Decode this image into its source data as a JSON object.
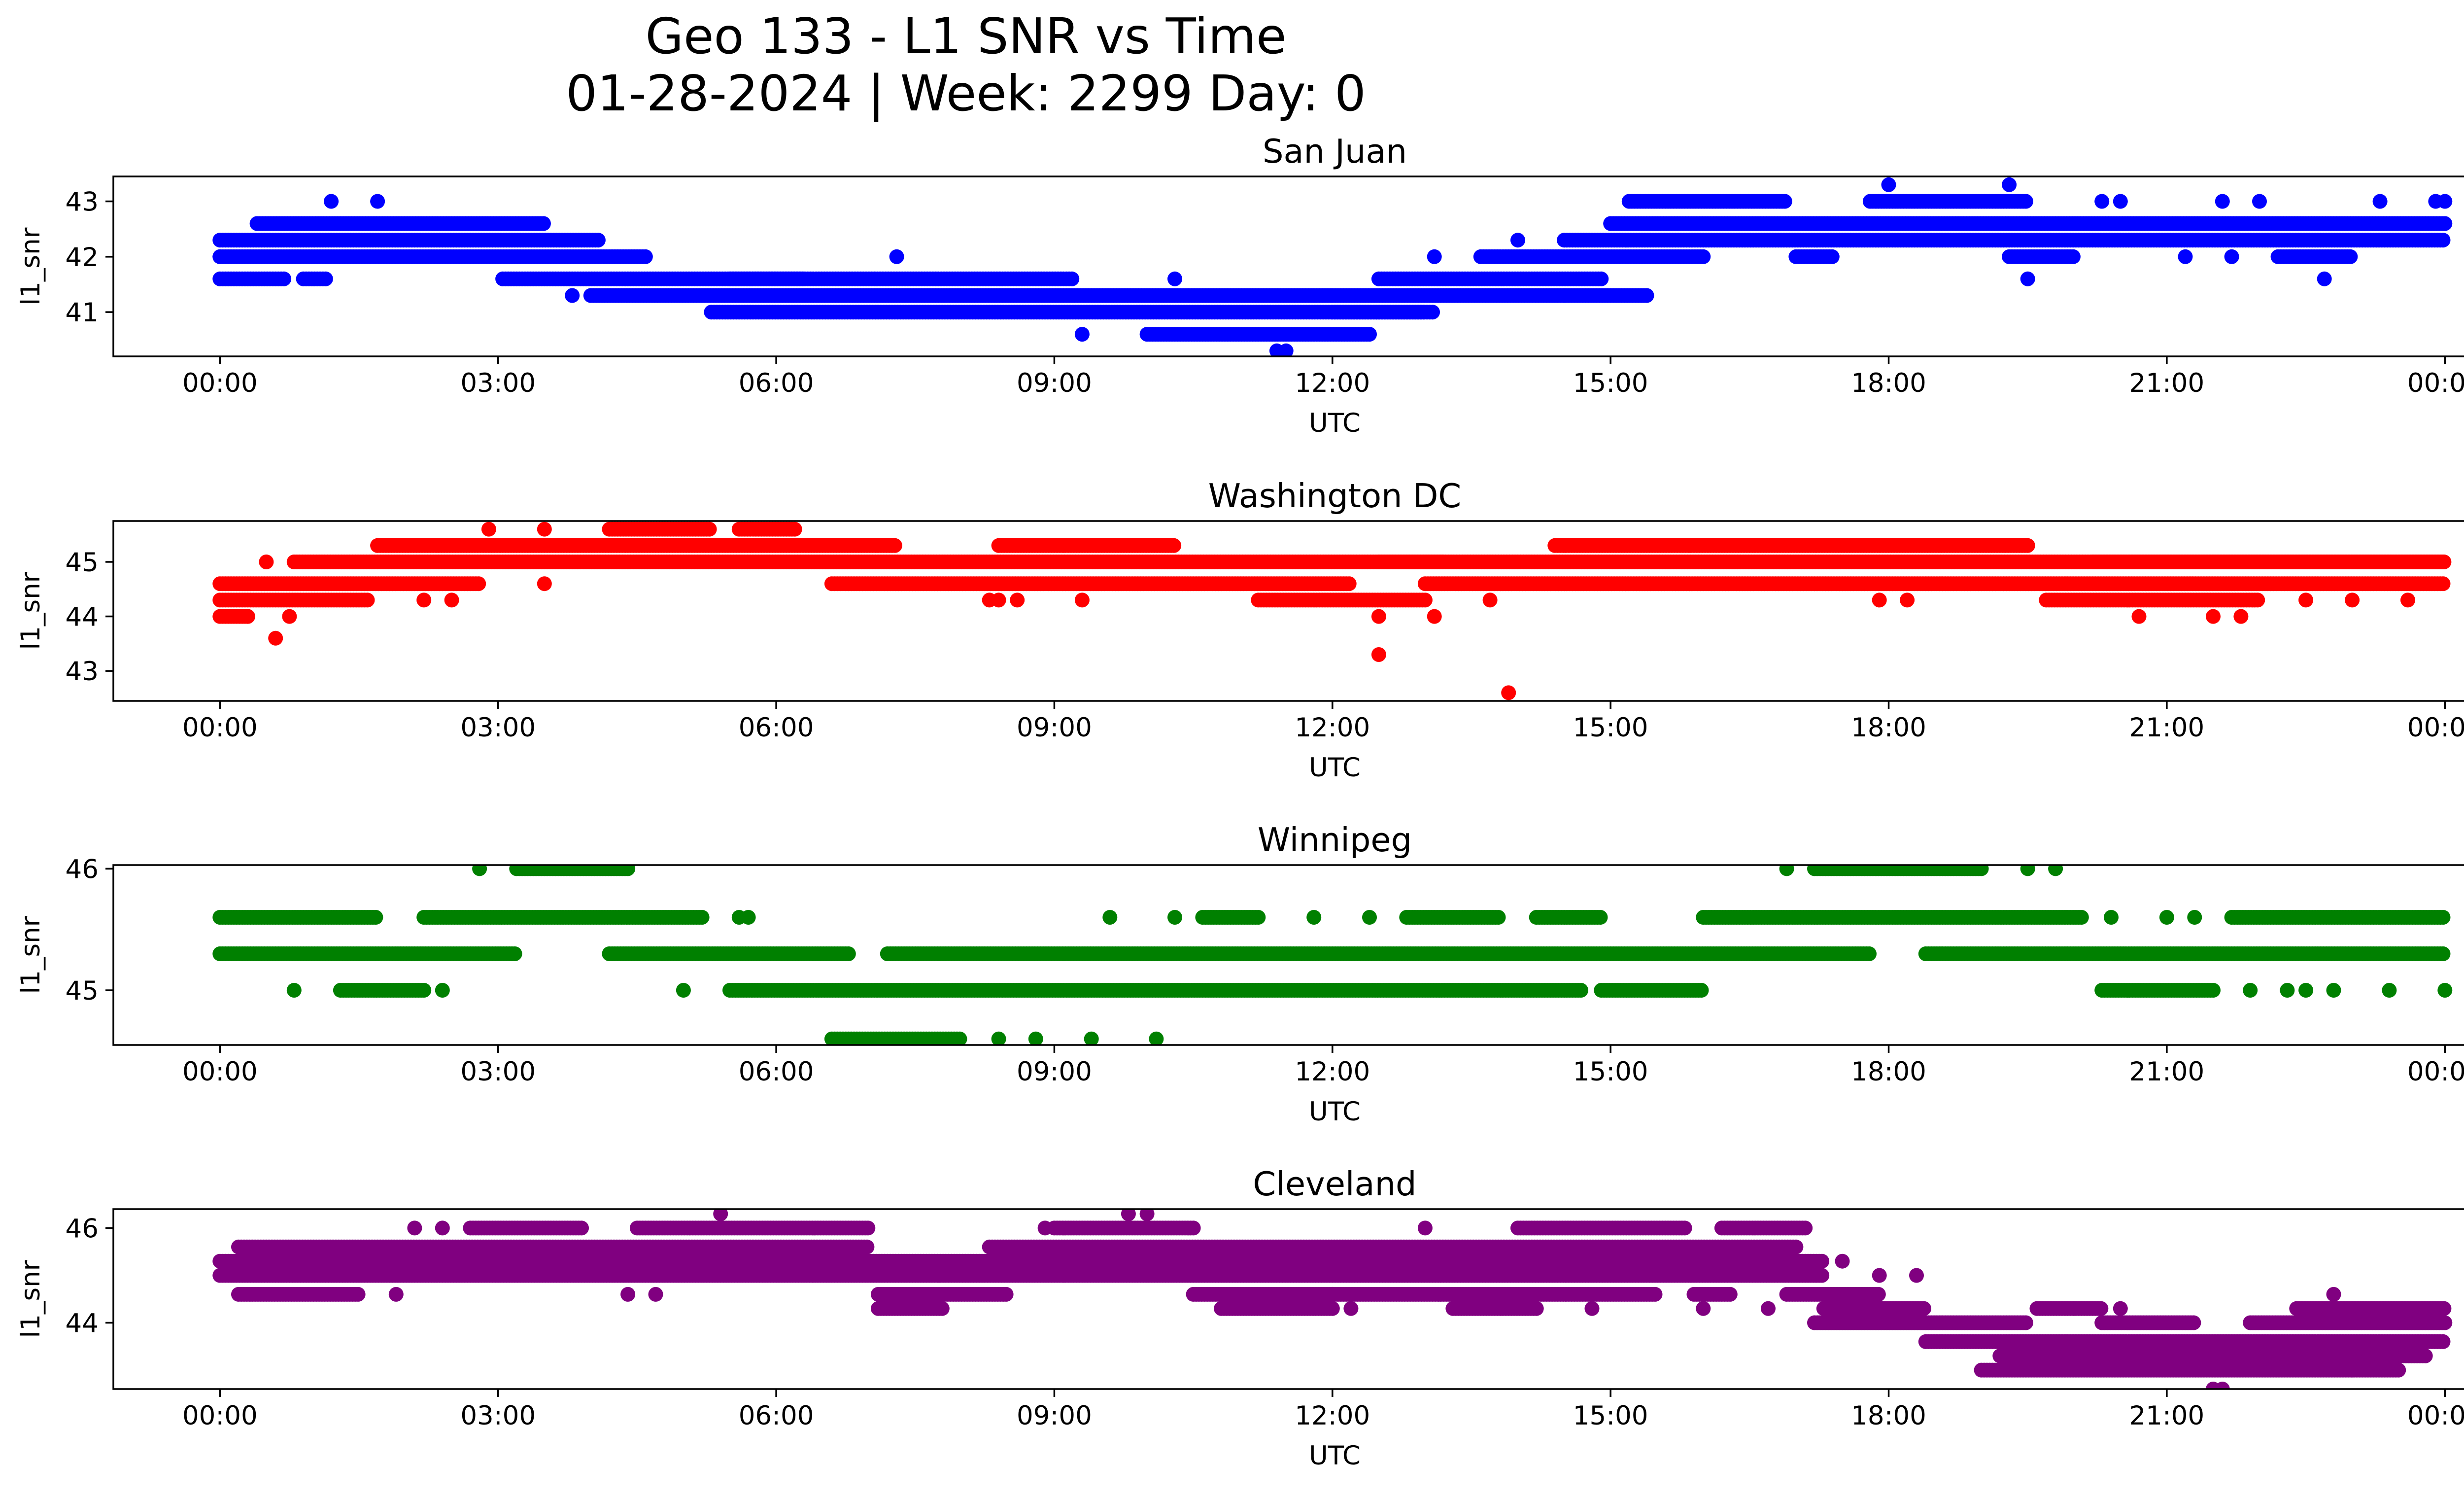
{
  "figure": {
    "title_line1": "Geo 133 - L1 SNR vs Time",
    "title_line2": "01-28-2024 | Week: 2299 Day: 0"
  },
  "chart_data": [
    {
      "type": "scatter",
      "title": "San Juan",
      "xlabel": "UTC",
      "ylabel": "l1_snr",
      "color": "#0000ff",
      "x_range_hours": [
        -1.15,
        25.2
      ],
      "ylim": [
        40.2,
        43.45
      ],
      "yticks": [
        41,
        42,
        43
      ],
      "xtick_labels": [
        "00:00",
        "03:00",
        "06:00",
        "09:00",
        "12:00",
        "15:00",
        "18:00",
        "21:00",
        "00:00"
      ],
      "bands": [
        {
          "y": 41.6,
          "segments": [
            [
              0.0,
              0.7
            ],
            [
              0.9,
              1.15
            ]
          ]
        },
        {
          "y": 42.0,
          "segments": [
            [
              0.0,
              4.6
            ]
          ]
        },
        {
          "y": 42.3,
          "segments": [
            [
              0.0,
              4.1
            ]
          ]
        },
        {
          "y": 42.6,
          "segments": [
            [
              0.4,
              3.5
            ]
          ]
        },
        {
          "y": 41.6,
          "segments": [
            [
              3.05,
              6.3
            ]
          ]
        },
        {
          "y": 41.3,
          "segments": [
            [
              4.0,
              12.0
            ]
          ]
        },
        {
          "y": 41.0,
          "segments": [
            [
              5.3,
              13.0
            ]
          ]
        },
        {
          "y": 41.6,
          "segments": [
            [
              5.5,
              9.2
            ]
          ]
        },
        {
          "y": 40.6,
          "segments": [
            [
              10.0,
              12.4
            ]
          ]
        },
        {
          "y": 41.0,
          "segments": [
            [
              12.0,
              13.1
            ]
          ]
        },
        {
          "y": 41.3,
          "segments": [
            [
              12.0,
              15.4
            ]
          ]
        },
        {
          "y": 41.6,
          "segments": [
            [
              12.5,
              14.9
            ]
          ]
        },
        {
          "y": 42.0,
          "segments": [
            [
              13.6,
              16.0
            ]
          ]
        },
        {
          "y": 42.3,
          "segments": [
            [
              14.5,
              24.0
            ]
          ]
        },
        {
          "y": 42.6,
          "segments": [
            [
              15.0,
              24.0
            ]
          ]
        },
        {
          "y": 43.0,
          "segments": [
            [
              15.2,
              16.9
            ],
            [
              17.8,
              19.5
            ]
          ]
        },
        {
          "y": 42.0,
          "segments": [
            [
              17.0,
              17.4
            ],
            [
              19.3,
              20.0
            ],
            [
              22.2,
              23.0
            ]
          ]
        }
      ],
      "points": [
        {
          "x": 1.2,
          "y": 43.0
        },
        {
          "x": 1.7,
          "y": 43.0
        },
        {
          "x": 0.0,
          "y": 42.0
        },
        {
          "x": 7.3,
          "y": 42.0
        },
        {
          "x": 10.3,
          "y": 41.6
        },
        {
          "x": 9.3,
          "y": 40.6
        },
        {
          "x": 11.5,
          "y": 40.3
        },
        {
          "x": 11.4,
          "y": 40.3
        },
        {
          "x": 3.8,
          "y": 41.3
        },
        {
          "x": 13.1,
          "y": 42.0
        },
        {
          "x": 14.5,
          "y": 41.3
        },
        {
          "x": 14.0,
          "y": 42.3
        },
        {
          "x": 18.0,
          "y": 43.3
        },
        {
          "x": 19.3,
          "y": 43.3
        },
        {
          "x": 19.5,
          "y": 41.6
        },
        {
          "x": 22.7,
          "y": 41.6
        },
        {
          "x": 20.3,
          "y": 43.0
        },
        {
          "x": 20.5,
          "y": 43.0
        },
        {
          "x": 21.6,
          "y": 43.0
        },
        {
          "x": 22.0,
          "y": 43.0
        },
        {
          "x": 23.9,
          "y": 43.0
        },
        {
          "x": 24.0,
          "y": 43.0
        },
        {
          "x": 23.3,
          "y": 43.0
        },
        {
          "x": 21.2,
          "y": 42.0
        },
        {
          "x": 21.7,
          "y": 42.0
        }
      ]
    },
    {
      "type": "scatter",
      "title": "Washington DC",
      "xlabel": "UTC",
      "ylabel": "l1_snr",
      "color": "#ff0000",
      "x_range_hours": [
        -1.15,
        25.2
      ],
      "ylim": [
        42.45,
        45.75
      ],
      "yticks": [
        43,
        44,
        45
      ],
      "xtick_labels": [
        "00:00",
        "03:00",
        "06:00",
        "09:00",
        "12:00",
        "15:00",
        "18:00",
        "21:00",
        "00:00"
      ],
      "bands": [
        {
          "y": 44.6,
          "segments": [
            [
              0.0,
              2.8
            ]
          ]
        },
        {
          "y": 44.3,
          "segments": [
            [
              0.0,
              1.6
            ]
          ]
        },
        {
          "y": 44.0,
          "segments": [
            [
              0.0,
              0.3
            ]
          ]
        },
        {
          "y": 45.0,
          "segments": [
            [
              0.8,
              13.2
            ]
          ]
        },
        {
          "y": 45.3,
          "segments": [
            [
              1.7,
              7.3
            ]
          ]
        },
        {
          "y": 45.6,
          "segments": [
            [
              4.2,
              5.3
            ],
            [
              5.6,
              6.2
            ]
          ]
        },
        {
          "y": 44.6,
          "segments": [
            [
              6.6,
              12.2
            ]
          ]
        },
        {
          "y": 45.3,
          "segments": [
            [
              8.4,
              10.3
            ]
          ]
        },
        {
          "y": 44.3,
          "segments": [
            [
              11.2,
              13.0
            ]
          ]
        },
        {
          "y": 45.0,
          "segments": [
            [
              12.5,
              24.0
            ]
          ]
        },
        {
          "y": 44.6,
          "segments": [
            [
              13.0,
              24.0
            ]
          ]
        },
        {
          "y": 45.3,
          "segments": [
            [
              14.4,
              19.5
            ]
          ]
        },
        {
          "y": 44.3,
          "segments": [
            [
              19.7,
              22.0
            ]
          ]
        },
        {
          "y": 45.0,
          "segments": [
            [
              20.2,
              24.0
            ]
          ]
        }
      ],
      "points": [
        {
          "x": 0.5,
          "y": 45.0
        },
        {
          "x": 0.3,
          "y": 44.0
        },
        {
          "x": 0.6,
          "y": 43.6
        },
        {
          "x": 0.75,
          "y": 44.0
        },
        {
          "x": 2.2,
          "y": 44.3
        },
        {
          "x": 2.5,
          "y": 44.3
        },
        {
          "x": 2.9,
          "y": 45.6
        },
        {
          "x": 3.5,
          "y": 45.6
        },
        {
          "x": 3.5,
          "y": 44.6
        },
        {
          "x": 8.3,
          "y": 44.3
        },
        {
          "x": 8.4,
          "y": 44.3
        },
        {
          "x": 8.6,
          "y": 44.3
        },
        {
          "x": 9.3,
          "y": 44.3
        },
        {
          "x": 12.5,
          "y": 43.3
        },
        {
          "x": 12.5,
          "y": 44.0
        },
        {
          "x": 13.1,
          "y": 44.0
        },
        {
          "x": 13.9,
          "y": 42.6
        },
        {
          "x": 13.7,
          "y": 44.3
        },
        {
          "x": 17.9,
          "y": 44.3
        },
        {
          "x": 18.2,
          "y": 44.3
        },
        {
          "x": 20.7,
          "y": 44.0
        },
        {
          "x": 21.5,
          "y": 44.0
        },
        {
          "x": 21.8,
          "y": 44.0
        },
        {
          "x": 22.5,
          "y": 44.3
        },
        {
          "x": 23.0,
          "y": 44.3
        },
        {
          "x": 23.6,
          "y": 44.3
        }
      ]
    },
    {
      "type": "scatter",
      "title": "Winnipeg",
      "xlabel": "UTC",
      "ylabel": "l1_snr",
      "color": "#008000",
      "x_range_hours": [
        -1.15,
        25.2
      ],
      "ylim": [
        44.55,
        46.03
      ],
      "yticks": [
        45,
        46
      ],
      "xtick_labels": [
        "00:00",
        "03:00",
        "06:00",
        "09:00",
        "12:00",
        "15:00",
        "18:00",
        "21:00",
        "00:00"
      ],
      "bands": [
        {
          "y": 45.6,
          "segments": [
            [
              0.0,
              1.7
            ],
            [
              2.2,
              5.2
            ],
            [
              16.0,
              20.1
            ]
          ]
        },
        {
          "y": 45.3,
          "segments": [
            [
              0.0,
              3.2
            ],
            [
              4.2,
              6.8
            ],
            [
              7.2,
              17.8
            ],
            [
              18.4,
              24.0
            ]
          ]
        },
        {
          "y": 45.0,
          "segments": [
            [
              1.3,
              2.2
            ],
            [
              5.5,
              14.7
            ],
            [
              14.9,
              16.0
            ],
            [
              20.3,
              21.5
            ]
          ]
        },
        {
          "y": 46.0,
          "segments": [
            [
              3.2,
              4.4
            ],
            [
              17.2,
              19.0
            ]
          ]
        },
        {
          "y": 44.6,
          "segments": [
            [
              6.6,
              8.0
            ]
          ]
        },
        {
          "y": 45.6,
          "segments": [
            [
              10.6,
              11.2
            ],
            [
              12.8,
              13.8
            ],
            [
              14.2,
              14.9
            ],
            [
              21.7,
              24.0
            ]
          ]
        }
      ],
      "points": [
        {
          "x": 0.8,
          "y": 45.0
        },
        {
          "x": 2.4,
          "y": 45.0
        },
        {
          "x": 2.8,
          "y": 46.0
        },
        {
          "x": 5.0,
          "y": 45.0
        },
        {
          "x": 5.6,
          "y": 45.6
        },
        {
          "x": 5.7,
          "y": 45.6
        },
        {
          "x": 8.4,
          "y": 44.6
        },
        {
          "x": 8.8,
          "y": 44.6
        },
        {
          "x": 9.4,
          "y": 44.6
        },
        {
          "x": 10.1,
          "y": 44.6
        },
        {
          "x": 9.6,
          "y": 45.6
        },
        {
          "x": 10.3,
          "y": 45.6
        },
        {
          "x": 11.8,
          "y": 45.6
        },
        {
          "x": 12.4,
          "y": 45.6
        },
        {
          "x": 16.9,
          "y": 46.0
        },
        {
          "x": 19.5,
          "y": 46.0
        },
        {
          "x": 19.8,
          "y": 46.0
        },
        {
          "x": 20.4,
          "y": 45.6
        },
        {
          "x": 21.0,
          "y": 45.6
        },
        {
          "x": 21.3,
          "y": 45.6
        },
        {
          "x": 21.9,
          "y": 45.0
        },
        {
          "x": 22.3,
          "y": 45.0
        },
        {
          "x": 22.5,
          "y": 45.0
        },
        {
          "x": 22.8,
          "y": 45.0
        },
        {
          "x": 23.4,
          "y": 45.0
        },
        {
          "x": 24.0,
          "y": 45.0
        }
      ]
    },
    {
      "type": "scatter",
      "title": "Cleveland",
      "xlabel": "UTC",
      "ylabel": "l1_snr",
      "color": "#800080",
      "x_range_hours": [
        -1.15,
        25.2
      ],
      "ylim": [
        42.6,
        46.4
      ],
      "yticks": [
        44,
        46
      ],
      "xtick_labels": [
        "00:00",
        "03:00",
        "06:00",
        "09:00",
        "12:00",
        "15:00",
        "18:00",
        "21:00",
        "00:00"
      ],
      "bands": [
        {
          "y": 45.0,
          "segments": [
            [
              0.0,
              17.3
            ]
          ]
        },
        {
          "y": 45.3,
          "segments": [
            [
              0.0,
              17.3
            ]
          ]
        },
        {
          "y": 45.6,
          "segments": [
            [
              0.2,
              7.0
            ],
            [
              8.3,
              17.0
            ]
          ]
        },
        {
          "y": 46.0,
          "segments": [
            [
              2.7,
              3.9
            ],
            [
              4.5,
              7.0
            ],
            [
              9.0,
              10.5
            ],
            [
              14.0,
              15.8
            ],
            [
              16.2,
              17.1
            ]
          ]
        },
        {
          "y": 44.6,
          "segments": [
            [
              0.2,
              1.5
            ],
            [
              7.1,
              8.5
            ],
            [
              10.5,
              15.5
            ],
            [
              15.9,
              16.3
            ],
            [
              16.9,
              17.9
            ]
          ]
        },
        {
          "y": 44.3,
          "segments": [
            [
              7.1,
              7.8
            ],
            [
              10.8,
              12.0
            ],
            [
              13.3,
              14.2
            ],
            [
              17.3,
              18.4
            ]
          ]
        },
        {
          "y": 44.0,
          "segments": [
            [
              17.2,
              19.5
            ]
          ]
        },
        {
          "y": 43.6,
          "segments": [
            [
              18.4,
              24.0
            ]
          ]
        },
        {
          "y": 43.3,
          "segments": [
            [
              19.2,
              23.8
            ]
          ]
        },
        {
          "y": 43.0,
          "segments": [
            [
              19.0,
              23.5
            ]
          ]
        },
        {
          "y": 44.3,
          "segments": [
            [
              19.6,
              20.3
            ],
            [
              22.4,
              24.0
            ]
          ]
        },
        {
          "y": 44.0,
          "segments": [
            [
              20.3,
              21.3
            ],
            [
              21.9,
              24.0
            ]
          ]
        }
      ],
      "points": [
        {
          "x": 1.9,
          "y": 44.6
        },
        {
          "x": 2.1,
          "y": 46.0
        },
        {
          "x": 2.4,
          "y": 46.0
        },
        {
          "x": 4.4,
          "y": 44.6
        },
        {
          "x": 4.7,
          "y": 44.6
        },
        {
          "x": 5.4,
          "y": 46.3
        },
        {
          "x": 8.9,
          "y": 46.0
        },
        {
          "x": 9.8,
          "y": 46.3
        },
        {
          "x": 10.0,
          "y": 46.3
        },
        {
          "x": 12.0,
          "y": 44.6
        },
        {
          "x": 12.2,
          "y": 44.3
        },
        {
          "x": 13.0,
          "y": 46.0
        },
        {
          "x": 14.8,
          "y": 44.3
        },
        {
          "x": 16.0,
          "y": 44.3
        },
        {
          "x": 16.7,
          "y": 44.3
        },
        {
          "x": 17.5,
          "y": 45.3
        },
        {
          "x": 17.9,
          "y": 45.0
        },
        {
          "x": 18.3,
          "y": 45.0
        },
        {
          "x": 20.0,
          "y": 44.3
        },
        {
          "x": 20.5,
          "y": 44.3
        },
        {
          "x": 21.5,
          "y": 42.6
        },
        {
          "x": 21.6,
          "y": 42.6
        },
        {
          "x": 22.8,
          "y": 44.6
        },
        {
          "x": 23.0,
          "y": 43.0
        }
      ]
    }
  ]
}
